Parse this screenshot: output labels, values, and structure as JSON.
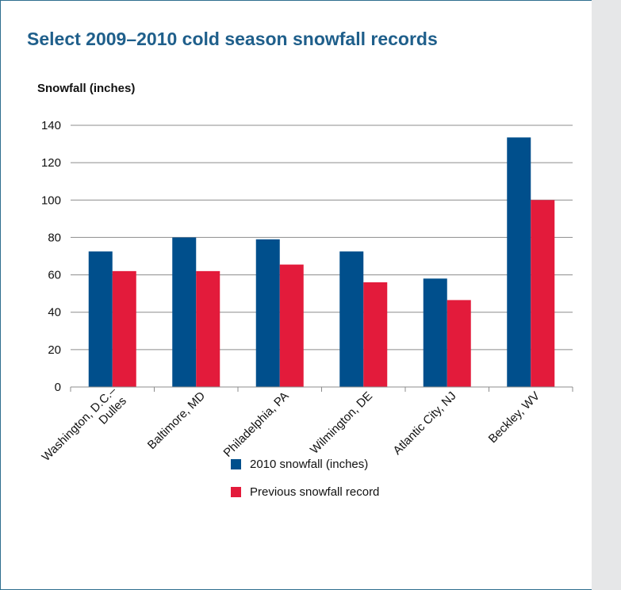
{
  "title": "Select 2009–2010 cold season snowfall records",
  "ylabel": "Snowfall (inches)",
  "colors": {
    "series_2010": "#004f8c",
    "series_record": "#e31b3b"
  },
  "chart_data": {
    "type": "bar",
    "title": "Select 2009–2010 cold season snowfall records",
    "ylabel": "Snowfall (inches)",
    "xlabel": "",
    "categories": [
      "Washington, D.C.–\nDulles",
      "Baltimore, MD",
      "Philadelphia, PA",
      "Wilmington, DE",
      "Atlantic City, NJ",
      "Beckley, WV"
    ],
    "series": [
      {
        "name": "2010 snowfall (inches)",
        "values": [
          72.5,
          80,
          79,
          72.5,
          58,
          133.5
        ]
      },
      {
        "name": "Previous snowfall record",
        "values": [
          62,
          62,
          65.5,
          56,
          46.5,
          100
        ]
      }
    ],
    "ylim": [
      0,
      140
    ],
    "yticks": [
      0,
      20,
      40,
      60,
      80,
      100,
      120,
      140
    ],
    "grid": true,
    "legend": "bottom"
  }
}
